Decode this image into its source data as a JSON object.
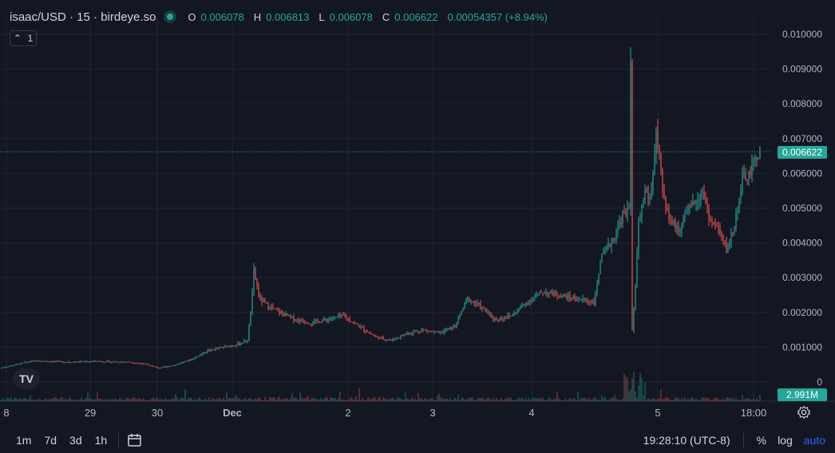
{
  "header": {
    "title": "isaac/USD · 15 · birdeye.so",
    "ohlc": [
      {
        "k": "O",
        "v": "0.006078"
      },
      {
        "k": "H",
        "v": "0.006813"
      },
      {
        "k": "L",
        "v": "0.006078"
      },
      {
        "k": "C",
        "v": "0.006622"
      },
      {
        "k": "",
        "v": "0.00054357 (+8.94%)"
      }
    ],
    "collapse_label": "1"
  },
  "colors": {
    "up": "#26a69a",
    "down": "#ef5350",
    "bg": "#131722",
    "grid": "#1f2430",
    "text": "#d1d4dc",
    "accent": "#2962ff"
  },
  "chart_data": {
    "type": "candlestick",
    "y_ticks": [
      "0.010000",
      "0.009000",
      "0.008000",
      "0.007000",
      "0.006000",
      "0.005000",
      "0.004000",
      "0.003000",
      "0.002000",
      "0.001000",
      "0"
    ],
    "y_values": [
      0.01,
      0.009,
      0.008,
      0.007,
      0.006,
      0.005,
      0.004,
      0.003,
      0.002,
      0.001,
      0
    ],
    "x_ticks": [
      "8",
      "29",
      "30",
      "Dec",
      "2",
      "3",
      "4",
      "5",
      "18:00"
    ],
    "last_price": "0.006622",
    "last_price_value": 0.006622,
    "volume_label": "2.991M",
    "price_path": [
      [
        0,
        0.0004
      ],
      [
        20,
        0.0005
      ],
      [
        40,
        0.0006
      ],
      [
        60,
        0.0006
      ],
      [
        80,
        0.00058
      ],
      [
        100,
        0.00058
      ],
      [
        120,
        0.0006
      ],
      [
        140,
        0.00058
      ],
      [
        160,
        0.00058
      ],
      [
        180,
        0.00052
      ],
      [
        200,
        0.0004
      ],
      [
        220,
        0.0005
      ],
      [
        240,
        0.00065
      ],
      [
        260,
        0.0009
      ],
      [
        280,
        0.001
      ],
      [
        300,
        0.0011
      ],
      [
        310,
        0.0012
      ],
      [
        315,
        0.0022
      ],
      [
        318,
        0.0032
      ],
      [
        325,
        0.0024
      ],
      [
        335,
        0.0022
      ],
      [
        350,
        0.002
      ],
      [
        370,
        0.0018
      ],
      [
        390,
        0.0017
      ],
      [
        410,
        0.0018
      ],
      [
        430,
        0.0019
      ],
      [
        450,
        0.0016
      ],
      [
        470,
        0.0013
      ],
      [
        490,
        0.0012
      ],
      [
        510,
        0.0014
      ],
      [
        530,
        0.0015
      ],
      [
        550,
        0.0014
      ],
      [
        570,
        0.0016
      ],
      [
        585,
        0.0024
      ],
      [
        600,
        0.0022
      ],
      [
        620,
        0.0018
      ],
      [
        640,
        0.0019
      ],
      [
        660,
        0.0023
      ],
      [
        680,
        0.0026
      ],
      [
        700,
        0.0025
      ],
      [
        720,
        0.0024
      ],
      [
        745,
        0.0023
      ],
      [
        752,
        0.0035
      ],
      [
        760,
        0.0038
      ],
      [
        770,
        0.0042
      ],
      [
        780,
        0.0048
      ],
      [
        788,
        0.005
      ],
      [
        790,
        0.0095
      ],
      [
        792,
        0.0015
      ],
      [
        796,
        0.0028
      ],
      [
        800,
        0.0045
      ],
      [
        808,
        0.0055
      ],
      [
        815,
        0.0052
      ],
      [
        822,
        0.0072
      ],
      [
        830,
        0.0055
      ],
      [
        840,
        0.0046
      ],
      [
        850,
        0.0044
      ],
      [
        860,
        0.0048
      ],
      [
        870,
        0.0052
      ],
      [
        880,
        0.0055
      ],
      [
        890,
        0.0046
      ],
      [
        900,
        0.0044
      ],
      [
        910,
        0.0038
      ],
      [
        920,
        0.0045
      ],
      [
        930,
        0.0058
      ],
      [
        940,
        0.006
      ],
      [
        950,
        0.0066
      ]
    ]
  },
  "timeframes": [
    "1m",
    "7d",
    "3d",
    "1h"
  ],
  "footer": {
    "time": "19:28:10 (UTC-8)",
    "percent": "%",
    "log": "log",
    "auto": "auto"
  },
  "logo_text": "TV"
}
